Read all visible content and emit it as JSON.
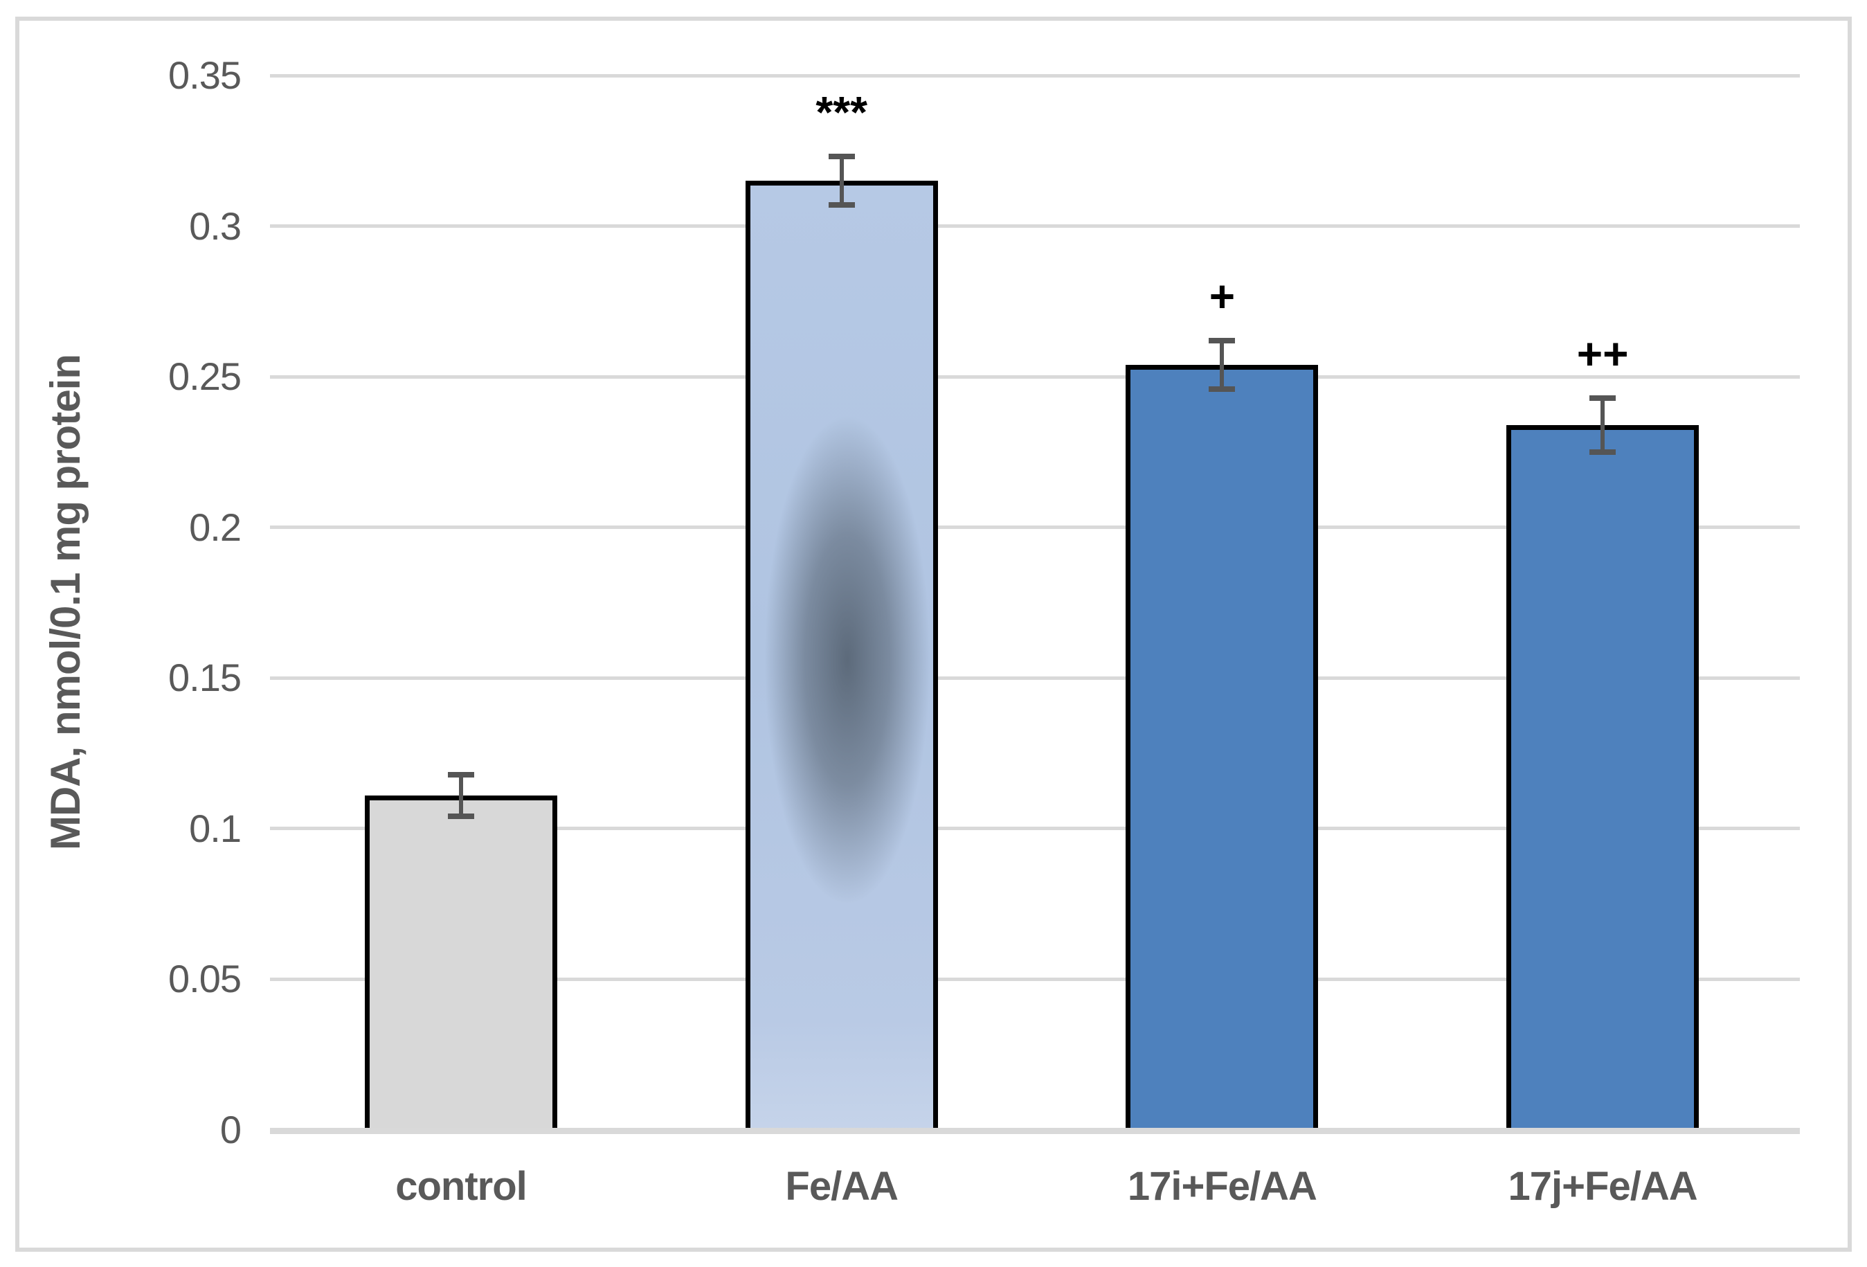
{
  "figure": {
    "background": "#FFFFFF",
    "border_color": "#D9D9D9"
  },
  "chart_data": {
    "type": "bar",
    "title": "",
    "xlabel": "",
    "ylabel": "MDA, nmol/0.1 mg protein",
    "categories": [
      "control",
      "Fe/AA",
      "17i+Fe/AA",
      "17j+Fe/AA"
    ],
    "values": [
      0.111,
      0.315,
      0.254,
      0.234
    ],
    "error_bars": [
      0.007,
      0.008,
      0.008,
      0.009
    ],
    "annotations": [
      "",
      "***",
      "+",
      "++"
    ],
    "ylim": [
      0,
      0.35
    ],
    "ytick_step": 0.05,
    "ytick_labels": [
      "0",
      "0.05",
      "0.1",
      "0.15",
      "0.2",
      "0.25",
      "0.3",
      "0.35"
    ],
    "grid": "horizontal",
    "legend": "none",
    "gridline_color": "#D9D9D9",
    "axis_line_color": "#D9D9D9",
    "tick_label_color": "#595959",
    "category_label_color": "#595959",
    "ylabel_color": "#595959",
    "annotation_color": "#000000",
    "bar_border_color": "#000000",
    "error_bar_color": "#555555",
    "bar_styles": [
      {
        "fill": "#D8D8D8",
        "style": "solid"
      },
      {
        "fill": "#B4C7E3",
        "style": "smudged",
        "smudge_color": "#46525F"
      },
      {
        "fill": "#4E81BD",
        "style": "solid"
      },
      {
        "fill": "#4E81BD",
        "style": "solid"
      }
    ]
  }
}
